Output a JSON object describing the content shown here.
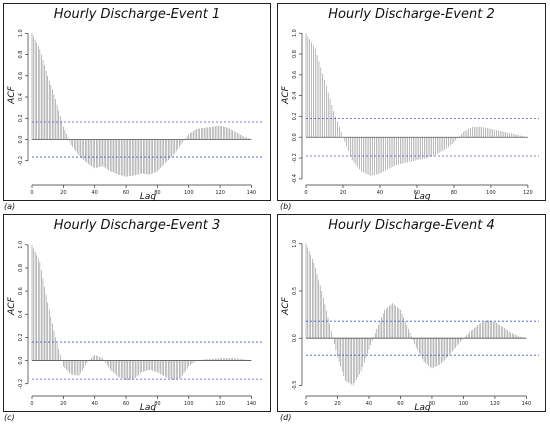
{
  "chart_data": [
    {
      "type": "bar",
      "title": "Hourly Discharge-Event 1",
      "panel_label": "(a)",
      "xlabel": "Lag",
      "ylabel": "ACF",
      "xlim": [
        0,
        148
      ],
      "ylim": [
        -0.4,
        1.05
      ],
      "xticks": [
        0,
        20,
        40,
        60,
        80,
        100,
        120,
        140
      ],
      "yticks": [
        -0.2,
        0.0,
        0.2,
        0.4,
        0.6,
        0.8,
        1.0
      ],
      "ytick_labels": [
        "-0.2",
        "0.0",
        "0.2",
        "0.4",
        "0.6",
        "0.8",
        "1.0"
      ],
      "conf_limit": 0.165,
      "max_lag": 140,
      "acf_knots": [
        [
          0,
          1.0
        ],
        [
          5,
          0.85
        ],
        [
          10,
          0.6
        ],
        [
          15,
          0.38
        ],
        [
          20,
          0.12
        ],
        [
          25,
          -0.05
        ],
        [
          30,
          -0.15
        ],
        [
          35,
          -0.22
        ],
        [
          40,
          -0.27
        ],
        [
          45,
          -0.25
        ],
        [
          50,
          -0.3
        ],
        [
          55,
          -0.33
        ],
        [
          60,
          -0.35
        ],
        [
          65,
          -0.34
        ],
        [
          70,
          -0.32
        ],
        [
          75,
          -0.33
        ],
        [
          80,
          -0.3
        ],
        [
          85,
          -0.22
        ],
        [
          90,
          -0.15
        ],
        [
          95,
          -0.05
        ],
        [
          100,
          0.05
        ],
        [
          105,
          0.1
        ],
        [
          110,
          0.11
        ],
        [
          115,
          0.12
        ],
        [
          120,
          0.13
        ],
        [
          125,
          0.11
        ],
        [
          130,
          0.07
        ],
        [
          135,
          0.03
        ],
        [
          140,
          0.0
        ]
      ]
    },
    {
      "type": "bar",
      "title": "Hourly Discharge-Event 2",
      "panel_label": "(b)",
      "xlabel": "Lag",
      "ylabel": "ACF",
      "xlim": [
        0,
        126
      ],
      "ylim": [
        -0.43,
        1.05
      ],
      "xticks": [
        0,
        20,
        40,
        60,
        80,
        100,
        120
      ],
      "yticks": [
        -0.4,
        -0.2,
        0.0,
        0.2,
        0.4,
        0.6,
        0.8,
        1.0
      ],
      "ytick_labels": [
        "-0.4",
        "-0.2",
        "0.0",
        "0.2",
        "0.4",
        "0.6",
        "0.8",
        "1.0"
      ],
      "conf_limit": 0.18,
      "max_lag": 120,
      "acf_knots": [
        [
          0,
          1.0
        ],
        [
          5,
          0.85
        ],
        [
          10,
          0.55
        ],
        [
          15,
          0.25
        ],
        [
          20,
          0.0
        ],
        [
          25,
          -0.22
        ],
        [
          30,
          -0.33
        ],
        [
          35,
          -0.37
        ],
        [
          40,
          -0.35
        ],
        [
          45,
          -0.3
        ],
        [
          50,
          -0.26
        ],
        [
          55,
          -0.24
        ],
        [
          60,
          -0.22
        ],
        [
          65,
          -0.2
        ],
        [
          70,
          -0.17
        ],
        [
          75,
          -0.12
        ],
        [
          80,
          -0.05
        ],
        [
          85,
          0.05
        ],
        [
          90,
          0.1
        ],
        [
          95,
          0.1
        ],
        [
          100,
          0.08
        ],
        [
          105,
          0.06
        ],
        [
          110,
          0.04
        ],
        [
          115,
          0.02
        ],
        [
          120,
          0.0
        ]
      ]
    },
    {
      "type": "bar",
      "title": "Hourly Discharge-Event 3",
      "panel_label": "(c)",
      "xlabel": "Lag",
      "ylabel": "ACF",
      "xlim": [
        0,
        148
      ],
      "ylim": [
        -0.28,
        1.05
      ],
      "xticks": [
        0,
        20,
        40,
        60,
        80,
        100,
        120,
        140
      ],
      "yticks": [
        -0.2,
        0.0,
        0.2,
        0.4,
        0.6,
        0.8,
        1.0
      ],
      "ytick_labels": [
        "-0.2",
        "0.0",
        "0.2",
        "0.4",
        "0.6",
        "0.8",
        "1.0"
      ],
      "conf_limit": 0.16,
      "max_lag": 140,
      "acf_knots": [
        [
          0,
          1.0
        ],
        [
          5,
          0.85
        ],
        [
          10,
          0.5
        ],
        [
          15,
          0.2
        ],
        [
          20,
          -0.05
        ],
        [
          25,
          -0.12
        ],
        [
          30,
          -0.13
        ],
        [
          35,
          -0.02
        ],
        [
          40,
          0.05
        ],
        [
          45,
          0.02
        ],
        [
          50,
          -0.08
        ],
        [
          55,
          -0.14
        ],
        [
          60,
          -0.17
        ],
        [
          65,
          -0.16
        ],
        [
          70,
          -0.1
        ],
        [
          75,
          -0.08
        ],
        [
          80,
          -0.1
        ],
        [
          85,
          -0.14
        ],
        [
          90,
          -0.17
        ],
        [
          95,
          -0.15
        ],
        [
          100,
          -0.05
        ],
        [
          105,
          0.0
        ],
        [
          110,
          0.01
        ],
        [
          120,
          0.02
        ],
        [
          130,
          0.02
        ],
        [
          140,
          0.0
        ]
      ]
    },
    {
      "type": "bar",
      "title": "Hourly Discharge-Event 4",
      "panel_label": "(d)",
      "xlabel": "Lag",
      "ylabel": "ACF",
      "xlim": [
        0,
        148
      ],
      "ylim": [
        -0.58,
        1.05
      ],
      "xticks": [
        0,
        20,
        40,
        60,
        80,
        100,
        120,
        140
      ],
      "yticks": [
        -0.5,
        0.0,
        0.5,
        1.0
      ],
      "ytick_labels": [
        "-0.5",
        "0.0",
        "0.5",
        "1.0"
      ],
      "conf_limit": 0.18,
      "max_lag": 140,
      "acf_knots": [
        [
          0,
          1.0
        ],
        [
          5,
          0.8
        ],
        [
          10,
          0.5
        ],
        [
          15,
          0.15
        ],
        [
          20,
          -0.2
        ],
        [
          25,
          -0.45
        ],
        [
          30,
          -0.5
        ],
        [
          35,
          -0.35
        ],
        [
          40,
          -0.12
        ],
        [
          45,
          0.1
        ],
        [
          50,
          0.3
        ],
        [
          55,
          0.37
        ],
        [
          60,
          0.3
        ],
        [
          65,
          0.1
        ],
        [
          70,
          -0.1
        ],
        [
          75,
          -0.25
        ],
        [
          80,
          -0.32
        ],
        [
          85,
          -0.28
        ],
        [
          90,
          -0.2
        ],
        [
          95,
          -0.1
        ],
        [
          100,
          0.0
        ],
        [
          105,
          0.08
        ],
        [
          110,
          0.15
        ],
        [
          115,
          0.19
        ],
        [
          120,
          0.17
        ],
        [
          125,
          0.12
        ],
        [
          130,
          0.06
        ],
        [
          135,
          0.02
        ],
        [
          140,
          0.0
        ]
      ]
    }
  ]
}
